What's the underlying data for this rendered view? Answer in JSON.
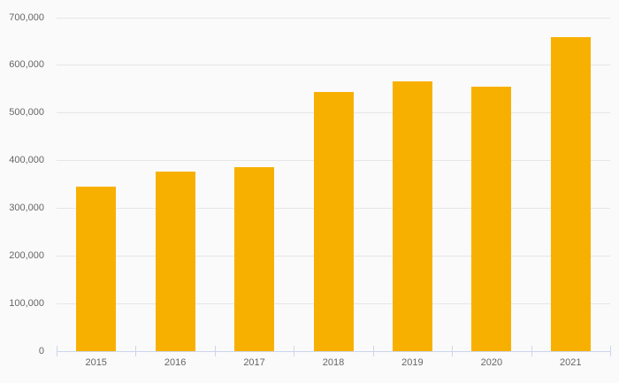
{
  "chart_data": {
    "type": "bar",
    "title": "",
    "xlabel": "",
    "ylabel": "",
    "categories": [
      "2015",
      "2016",
      "2017",
      "2018",
      "2019",
      "2020",
      "2021"
    ],
    "values": [
      345000,
      377000,
      386000,
      544000,
      566000,
      556000,
      659000
    ],
    "ylim": [
      0,
      700000
    ],
    "ytick_step": 100000,
    "ytick_labels": [
      "0",
      "100,000",
      "200,000",
      "300,000",
      "400,000",
      "500,000",
      "600,000",
      "700,000"
    ],
    "grid": true,
    "legend": false,
    "colors": {
      "bar": "#f8b000",
      "background": "#fafafa",
      "gridline": "#e6e6e6",
      "axis": "#ccd6eb",
      "label": "#666666"
    }
  }
}
